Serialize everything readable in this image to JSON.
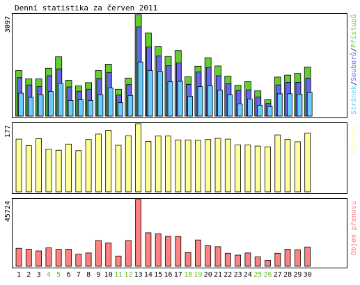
{
  "title": "Denní statistika za červen 2011",
  "colors": {
    "background": "#ffffff",
    "panel_border": "#000000",
    "hits": "#66cc33",
    "files": "#6666ee",
    "pages": "#66ccff",
    "visits": "#ffff99",
    "volume": "#ff8080",
    "weekend_label": "#66bb22"
  },
  "chart_data": [
    {
      "type": "bar",
      "title": "Denní statistika za červen 2011",
      "axis_max_label": "3097",
      "categories": [
        "1",
        "2",
        "3",
        "4",
        "5",
        "6",
        "7",
        "8",
        "9",
        "10",
        "11",
        "12",
        "13",
        "14",
        "15",
        "16",
        "17",
        "18",
        "19",
        "20",
        "21",
        "22",
        "23",
        "24",
        "25",
        "26",
        "27",
        "28",
        "29",
        "30"
      ],
      "weekend_days": [
        "4",
        "5",
        "11",
        "12",
        "18",
        "19",
        "25",
        "26"
      ],
      "ylim": [
        0,
        3097
      ],
      "grid": false,
      "legend_position": "right-vertical",
      "series": [
        {
          "name": "Přístupů",
          "color": "#66cc33",
          "values": [
            1390,
            1140,
            1140,
            1460,
            1810,
            1090,
            920,
            1020,
            1390,
            1580,
            820,
            1160,
            3097,
            2540,
            2130,
            1820,
            2000,
            1200,
            1520,
            1780,
            1530,
            1220,
            940,
            1050,
            770,
            500,
            1190,
            1250,
            1300,
            1500
          ]
        },
        {
          "name": "Souborů",
          "color": "#6666ee",
          "values": [
            1170,
            950,
            900,
            1230,
            1440,
            890,
            760,
            820,
            1150,
            1330,
            640,
            960,
            2720,
            2110,
            1840,
            1540,
            1620,
            970,
            1350,
            1490,
            1230,
            990,
            780,
            800,
            580,
            390,
            950,
            1030,
            1030,
            1160
          ]
        },
        {
          "name": "Stránek",
          "color": "#66ccff",
          "values": [
            700,
            570,
            650,
            750,
            1000,
            480,
            500,
            480,
            650,
            860,
            410,
            630,
            1650,
            1390,
            1360,
            1050,
            1060,
            600,
            900,
            920,
            790,
            650,
            370,
            520,
            330,
            290,
            680,
            680,
            670,
            720
          ]
        }
      ]
    },
    {
      "type": "bar",
      "axis_max_label": "177",
      "categories": [
        "1",
        "2",
        "3",
        "4",
        "5",
        "6",
        "7",
        "8",
        "9",
        "10",
        "11",
        "12",
        "13",
        "14",
        "15",
        "16",
        "17",
        "18",
        "19",
        "20",
        "21",
        "22",
        "23",
        "24",
        "25",
        "26",
        "27",
        "28",
        "29",
        "30"
      ],
      "ylim": [
        0,
        177
      ],
      "series": [
        {
          "name": "Návštěv",
          "color": "#ffff99",
          "values": [
            137,
            120,
            138,
            111,
            108,
            124,
            107,
            136,
            150,
            160,
            121,
            146,
            177,
            131,
            145,
            145,
            135,
            135,
            134,
            136,
            139,
            137,
            122,
            122,
            119,
            117,
            148,
            136,
            130,
            153
          ]
        }
      ]
    },
    {
      "type": "bar",
      "axis_max_label": "45724",
      "categories": [
        "1",
        "2",
        "3",
        "4",
        "5",
        "6",
        "7",
        "8",
        "9",
        "10",
        "11",
        "12",
        "13",
        "14",
        "15",
        "16",
        "17",
        "18",
        "19",
        "20",
        "21",
        "22",
        "23",
        "24",
        "25",
        "26",
        "27",
        "28",
        "29",
        "30"
      ],
      "ylim": [
        0,
        45724
      ],
      "series": [
        {
          "name": "Objem přenosu",
          "color": "#ff8080",
          "values": [
            12300,
            11700,
            10500,
            12600,
            11600,
            11700,
            8300,
            9100,
            17600,
            16000,
            7000,
            17600,
            45724,
            22900,
            22300,
            20500,
            20400,
            9400,
            18000,
            14000,
            13400,
            8900,
            7600,
            9100,
            6400,
            4100,
            8900,
            11700,
            11300,
            13200
          ]
        }
      ]
    }
  ]
}
